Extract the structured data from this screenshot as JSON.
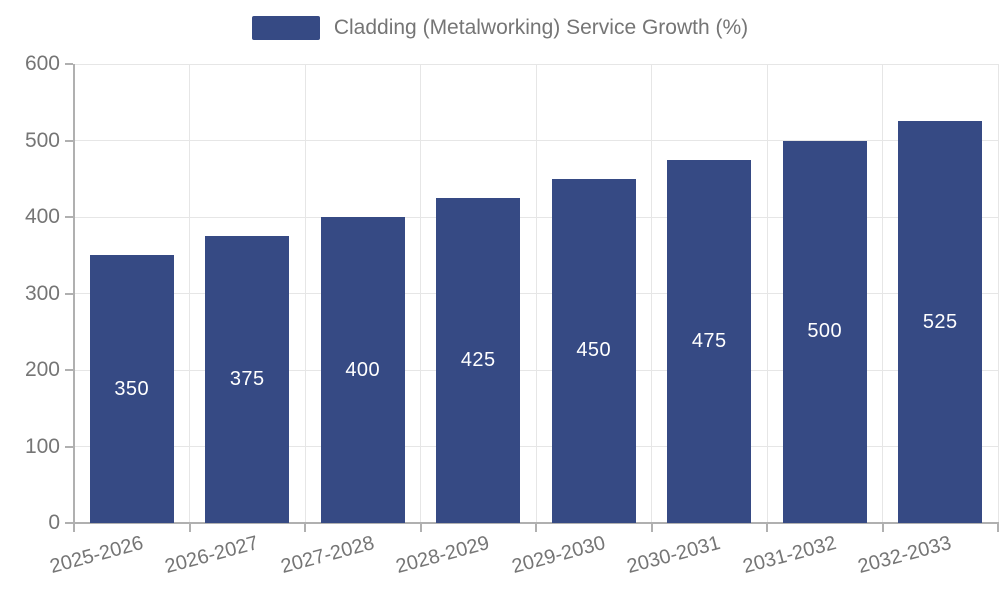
{
  "chart_data": {
    "type": "bar",
    "title": "Cladding (Metalworking) Service Growth (%)",
    "categories": [
      "2025-2026",
      "2026-2027",
      "2027-2028",
      "2028-2029",
      "2029-2030",
      "2030-2031",
      "2031-2032",
      "2032-2033"
    ],
    "values": [
      350,
      375,
      400,
      425,
      450,
      475,
      500,
      525
    ],
    "xlabel": "",
    "ylabel": "",
    "ylim": [
      0,
      600
    ],
    "yticks": [
      0,
      100,
      200,
      300,
      400,
      500,
      600
    ],
    "grid": true,
    "legend_position": "top",
    "bar_labels_inside": true
  },
  "colors": {
    "bar_fill": "#364a84",
    "bar_label_text": "#ffffff",
    "axis_text": "#757575",
    "grid_line": "#e6e6e6",
    "axis_line": "#b0b0b0",
    "background": "#ffffff"
  }
}
